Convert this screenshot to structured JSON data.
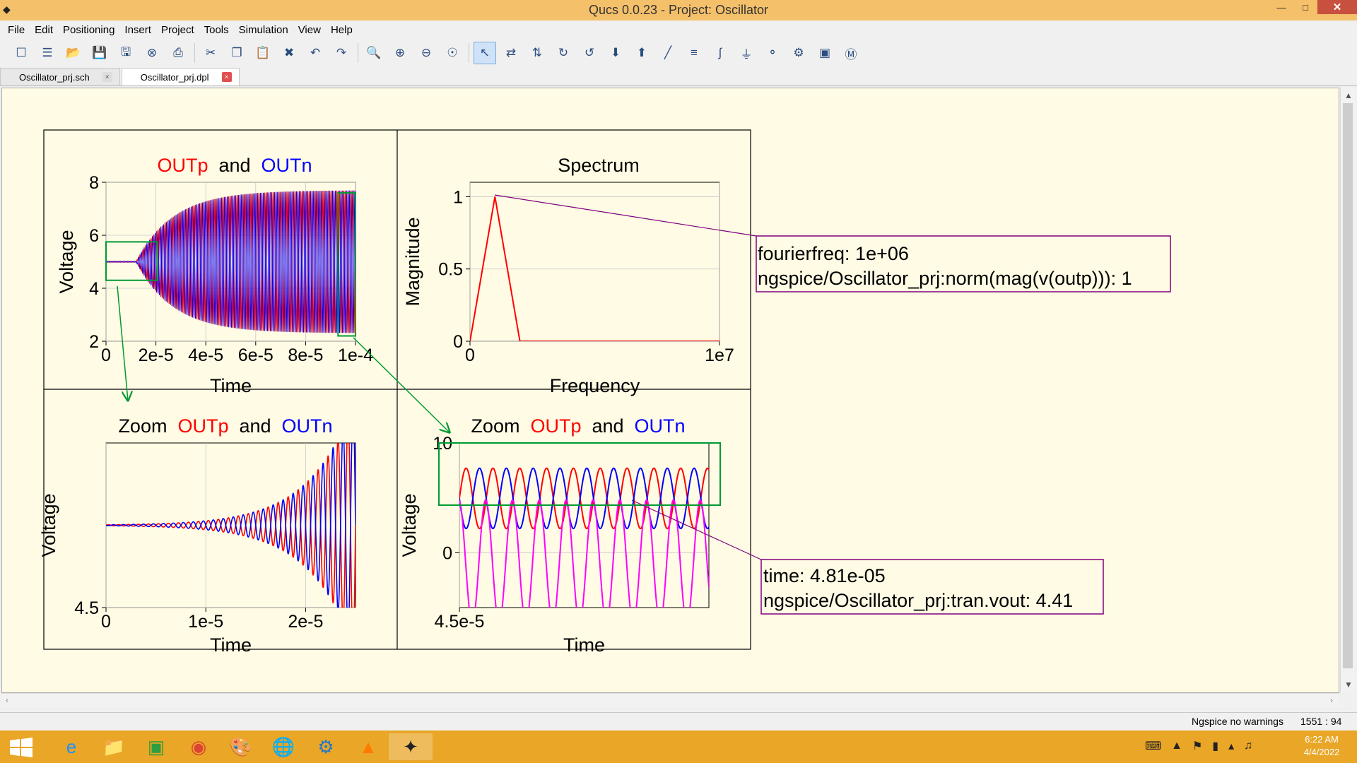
{
  "window": {
    "title": "Qucs 0.0.23 - Project: Oscillator",
    "min_label": "—",
    "max_label": "□",
    "close_label": "✕"
  },
  "menu": [
    "File",
    "Edit",
    "Positioning",
    "Insert",
    "Project",
    "Tools",
    "Simulation",
    "View",
    "Help"
  ],
  "toolbar_icons": [
    "new-file-icon",
    "new-text-icon",
    "open-icon",
    "save-icon",
    "save-all-icon",
    "close-doc-icon",
    "print-icon",
    "cut-icon",
    "copy-icon",
    "paste-icon",
    "delete-icon",
    "undo-icon",
    "redo-icon",
    "zoom-fit-icon",
    "zoom-in-icon",
    "zoom-out-icon",
    "zoom-one-icon",
    "select-pointer-icon",
    "mirror-x-icon",
    "mirror-y-icon",
    "rotate-icon",
    "rotate-ccw-icon",
    "goto-subcircuit-icon",
    "go-up-icon",
    "wire-icon",
    "wire-label-icon",
    "equation-icon",
    "ground-icon",
    "port-icon",
    "simulate-icon",
    "view-data-icon",
    "marker-icon"
  ],
  "tabs": [
    {
      "label": "Oscillator_prj.sch",
      "close": "×"
    },
    {
      "label": "Oscillator_prj.dpl",
      "close": "×"
    }
  ],
  "colors": {
    "outp": "#ff0000",
    "outn": "#0000ff",
    "vout": "#ff00ff",
    "marker": "#800080",
    "zoom_rect": "#009933",
    "plot_bg": "#fffbe4"
  },
  "chart_data": [
    {
      "type": "line",
      "title": {
        "parts": [
          "OUTp",
          "and",
          "OUTn"
        ]
      },
      "xlabel": "Time",
      "ylabel": "Voltage",
      "xlim": [
        0,
        0.0001
      ],
      "ylim": [
        2,
        8
      ],
      "xticks": [
        "0",
        "2e-5",
        "4e-5",
        "6e-5",
        "8e-5",
        "1e-4"
      ],
      "yticks": [
        "2",
        "4",
        "6",
        "8"
      ],
      "grid": true,
      "series": [
        {
          "name": "OUTp",
          "center": 5,
          "amplitude_end": 2.7,
          "growth_start": 1.2e-05,
          "growth_tau": 1.5e-05,
          "cycles": 90
        },
        {
          "name": "OUTn",
          "center": 5,
          "amplitude_end": 2.7,
          "growth_start": 1.2e-05,
          "growth_tau": 1.5e-05,
          "cycles": 90
        }
      ],
      "zoom_regions": [
        {
          "x": [
            0,
            2.05e-05
          ],
          "y": [
            4.3,
            5.75
          ]
        },
        {
          "x": [
            9.3e-05,
            0.0001
          ],
          "y": [
            2.2,
            7.6
          ]
        }
      ]
    },
    {
      "type": "line",
      "title": {
        "parts": [
          "Spectrum"
        ]
      },
      "xlabel": "Frequency",
      "ylabel": "Magnitude",
      "xlim": [
        0,
        10000000
      ],
      "ylim": [
        0,
        1.1
      ],
      "xticks": [
        "0",
        "1e7"
      ],
      "yticks": [
        "0",
        "0.5",
        "1"
      ],
      "grid": true,
      "series": [
        {
          "name": "norm(mag(v(outp)))",
          "x": [
            0,
            0,
            1000000,
            2000000,
            10000000
          ],
          "y": [
            0,
            0,
            1,
            0,
            0
          ]
        }
      ],
      "marker": {
        "lines": [
          "fourierfreq: 1e+06",
          "ngspice/Oscillator_prj:norm(mag(v(outp))): 1"
        ],
        "x": 1000000,
        "y": 1
      }
    },
    {
      "type": "line",
      "title": {
        "parts": [
          "Zoom",
          "OUTp",
          "and",
          "OUTn"
        ]
      },
      "xlabel": "Time",
      "ylabel": "Voltage",
      "xlim": [
        0,
        2.5e-05
      ],
      "ylim": [
        4.5,
        5.5
      ],
      "xticks": [
        "0",
        "1e-5",
        "2e-5"
      ],
      "yticks": [
        "4.5"
      ],
      "grid": true,
      "series": [
        {
          "name": "OUTp",
          "center": 5.0,
          "amp0": 0.003,
          "tau": 4.5e-06,
          "cycles": 25
        },
        {
          "name": "OUTn",
          "center": 5.0,
          "amp0": 0.003,
          "tau": 4.5e-06,
          "cycles": 25
        }
      ]
    },
    {
      "type": "line",
      "title": {
        "parts": [
          "Zoom",
          "OUTp",
          "and",
          "OUTn"
        ]
      },
      "xlabel": "Time",
      "ylabel": "Voltage",
      "xlim": [
        4.5e-05,
        5.5e-05
      ],
      "ylim": [
        -5,
        10
      ],
      "xticks": [
        "4.5e-5"
      ],
      "yticks": [
        "0",
        "10"
      ],
      "grid": true,
      "series": [
        {
          "name": "OUTp",
          "center": 4.95,
          "amplitude": 2.75,
          "cycles": 9.3,
          "phase": 0
        },
        {
          "name": "OUTn",
          "center": 4.95,
          "amplitude": 2.75,
          "cycles": 9.3,
          "phase": 3.14159
        },
        {
          "name": "vout",
          "center": -0.8,
          "amplitude": 5.6,
          "cycles": 9.3,
          "phase": 1.7
        }
      ],
      "marker": {
        "lines": [
          "time: 4.81e-05",
          "ngspice/Oscillator_prj:tran.vout: 4.41"
        ],
        "x": 4.81e-05,
        "y": 4.41
      }
    }
  ],
  "status": {
    "message": "Ngspice  no warnings",
    "coords": "1551 : 94"
  },
  "taskbar": {
    "apps": [
      "internet-explorer-icon",
      "file-explorer-icon",
      "store-icon",
      "chrome-icon",
      "paint-icon",
      "globe-app-icon",
      "tool-app-icon",
      "vlc-icon",
      "qucs-icon"
    ],
    "clock_time": "6:22 AM",
    "clock_date": "4/4/2022"
  }
}
